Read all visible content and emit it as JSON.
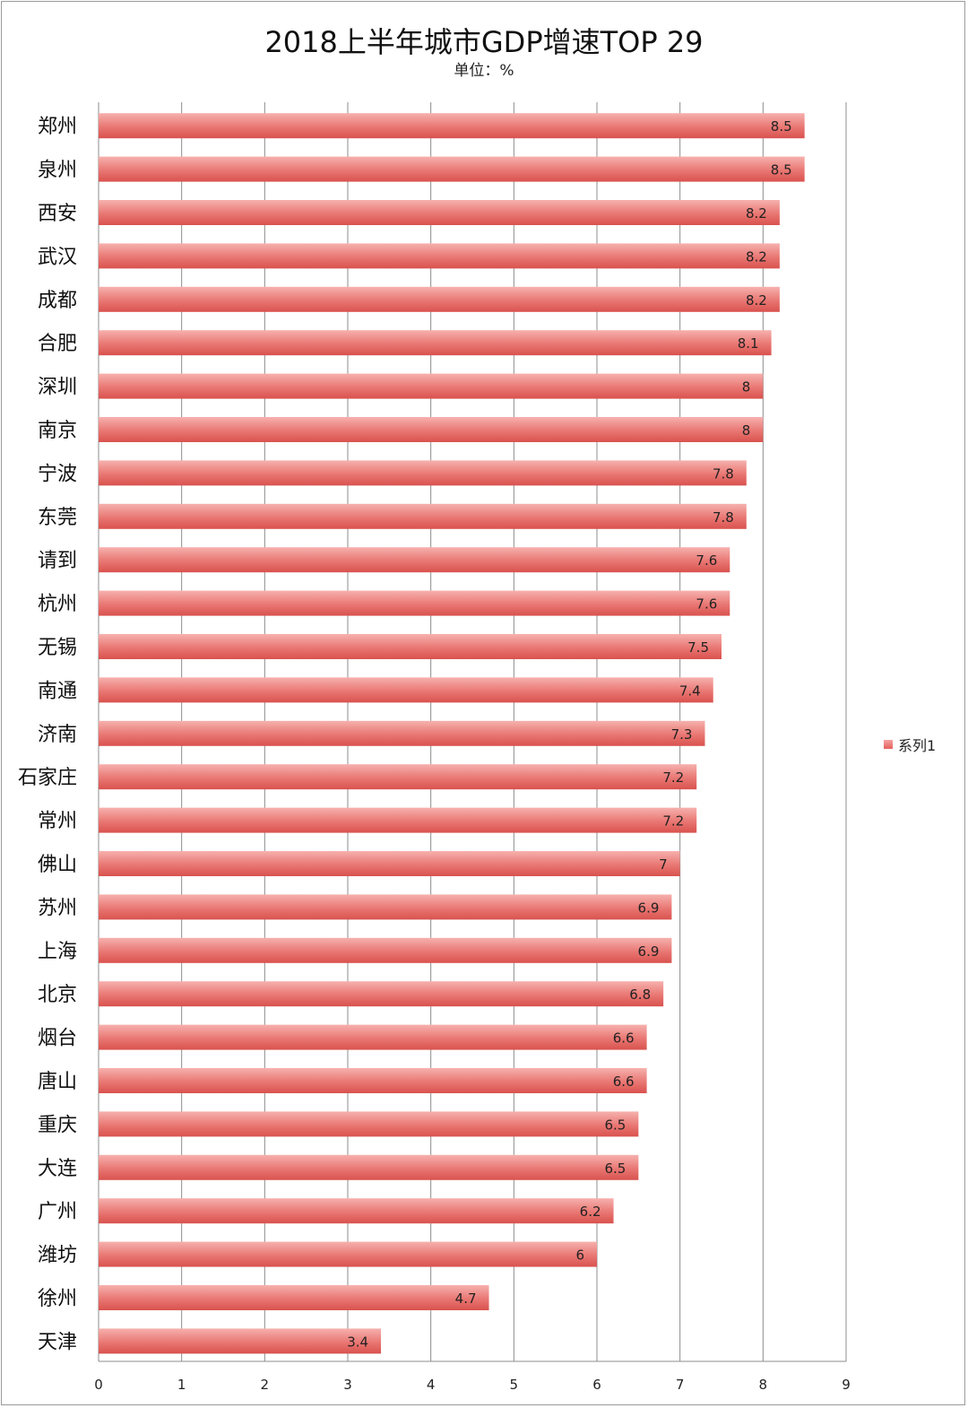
{
  "chart_data": {
    "type": "bar",
    "orientation": "horizontal",
    "title": "2018上半年城市GDP增速TOP 29",
    "subtitle": "单位：%",
    "categories": [
      "郑州",
      "泉州",
      "西安",
      "武汉",
      "成都",
      "合肥",
      "深圳",
      "南京",
      "宁波",
      "东莞",
      "请到",
      "杭州",
      "无锡",
      "南通",
      "济南",
      "石家庄",
      "常州",
      "佛山",
      "苏州",
      "上海",
      "北京",
      "烟台",
      "唐山",
      "重庆",
      "大连",
      "广州",
      "潍坊",
      "徐州",
      "天津"
    ],
    "series": [
      {
        "name": "系列1",
        "color": "#e8706c",
        "values": [
          8.5,
          8.5,
          8.2,
          8.2,
          8.2,
          8.1,
          8,
          8,
          7.8,
          7.8,
          7.6,
          7.6,
          7.5,
          7.4,
          7.3,
          7.2,
          7.2,
          7,
          6.9,
          6.9,
          6.8,
          6.6,
          6.6,
          6.5,
          6.5,
          6.2,
          6,
          4.7,
          3.4
        ]
      }
    ],
    "xlim": [
      0,
      9
    ],
    "xticks": [
      "0",
      "1",
      "2",
      "3",
      "4",
      "5",
      "6",
      "7",
      "8",
      "9"
    ],
    "grid": true,
    "legend": "right"
  }
}
